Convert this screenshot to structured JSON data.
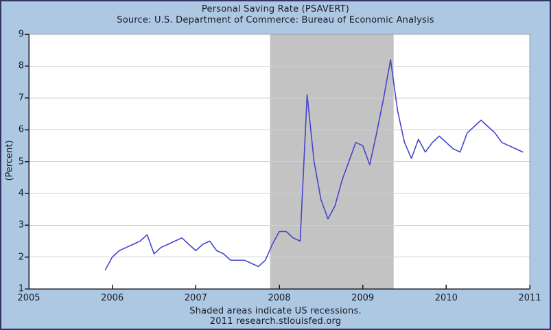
{
  "page": {
    "footer_line1": "Shaded areas indicate US recessions.",
    "footer_line2": "2011 research.stlouisfed.org"
  },
  "chart_data": {
    "type": "line",
    "title": "Personal Saving Rate (PSAVERT)",
    "source": "Source: U.S. Department of Commerce: Bureau of Economic Analysis",
    "xlabel": "",
    "ylabel": "(Percent)",
    "xlim": [
      2005,
      2011
    ],
    "ylim": [
      1,
      9
    ],
    "x_ticks": [
      2005,
      2006,
      2007,
      2008,
      2009,
      2010,
      2011
    ],
    "y_ticks": [
      1,
      2,
      3,
      4,
      5,
      6,
      7,
      8,
      9
    ],
    "grid": true,
    "legend": "none",
    "series": [
      {
        "name": "PSAVERT",
        "frequency": "monthly",
        "start": "2005-12",
        "end": "2010-12",
        "values": [
          1.6,
          2.0,
          2.2,
          2.3,
          2.4,
          2.5,
          2.7,
          2.1,
          2.3,
          2.4,
          2.5,
          2.6,
          2.4,
          2.2,
          2.4,
          2.5,
          2.2,
          2.1,
          1.9,
          1.9,
          1.9,
          1.8,
          1.7,
          1.9,
          2.4,
          2.8,
          2.8,
          2.6,
          2.5,
          7.1,
          5.0,
          3.8,
          3.2,
          3.6,
          4.4,
          5.0,
          5.6,
          5.5,
          4.9,
          5.9,
          7.0,
          8.2,
          6.6,
          5.6,
          5.1,
          5.7,
          5.3,
          5.6,
          5.8,
          5.6,
          5.4,
          5.3,
          5.9,
          6.1,
          6.3,
          6.1,
          5.9,
          5.6,
          5.5,
          5.4,
          5.3
        ]
      }
    ],
    "recession_bands": [
      {
        "start": 2007.89,
        "end": 2009.37
      }
    ],
    "colors": {
      "line": "#4444cc",
      "recession": "#c3c3c3",
      "grid": "#cfcfcf",
      "frame_light": "#9c9ca4",
      "axis": "#16161d",
      "plot_background": "#ffffff",
      "page_background": "#adc8e2",
      "text": "#1a1a26"
    }
  }
}
